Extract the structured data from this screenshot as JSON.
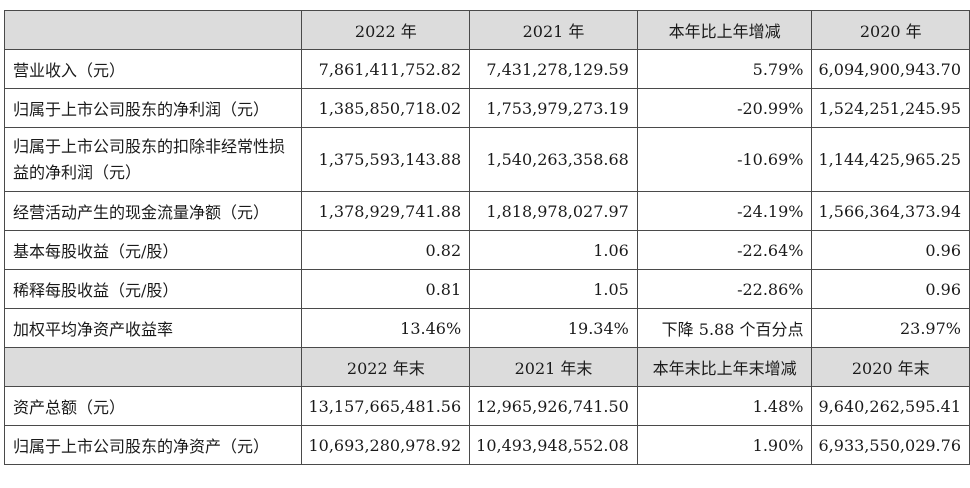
{
  "table": {
    "header1": [
      "2022 年",
      "2021 年",
      "本年比上年增减",
      "2020 年"
    ],
    "rows1": [
      {
        "label": "营业收入（元）",
        "v2022": "7,861,411,752.82",
        "v2021": "7,431,278,129.59",
        "change": "5.79%",
        "v2020": "6,094,900,943.70"
      },
      {
        "label": "归属于上市公司股东的净利润（元）",
        "v2022": "1,385,850,718.02",
        "v2021": "1,753,979,273.19",
        "change": "-20.99%",
        "v2020": "1,524,251,245.95"
      },
      {
        "label": "归属于上市公司股东的扣除非经常性损益的净利润（元）",
        "v2022": "1,375,593,143.88",
        "v2021": "1,540,263,358.68",
        "change": "-10.69%",
        "v2020": "1,144,425,965.25"
      },
      {
        "label": "经营活动产生的现金流量净额（元）",
        "v2022": "1,378,929,741.88",
        "v2021": "1,818,978,027.97",
        "change": "-24.19%",
        "v2020": "1,566,364,373.94"
      },
      {
        "label": "基本每股收益（元/股）",
        "v2022": "0.82",
        "v2021": "1.06",
        "change": "-22.64%",
        "v2020": "0.96"
      },
      {
        "label": "稀释每股收益（元/股）",
        "v2022": "0.81",
        "v2021": "1.05",
        "change": "-22.86%",
        "v2020": "0.96"
      },
      {
        "label": "加权平均净资产收益率",
        "v2022": "13.46%",
        "v2021": "19.34%",
        "change": "下降 5.88 个百分点",
        "v2020": "23.97%"
      }
    ],
    "header2": [
      "2022 年末",
      "2021 年末",
      "本年末比上年末增减",
      "2020 年末"
    ],
    "rows2": [
      {
        "label": "资产总额（元）",
        "v2022": "13,157,665,481.56",
        "v2021": "12,965,926,741.50",
        "change": "1.48%",
        "v2020": "9,640,262,595.41"
      },
      {
        "label": "归属于上市公司股东的净资产（元）",
        "v2022": "10,693,280,978.92",
        "v2021": "10,493,948,552.08",
        "change": "1.90%",
        "v2020": "6,933,550,029.76"
      }
    ]
  }
}
